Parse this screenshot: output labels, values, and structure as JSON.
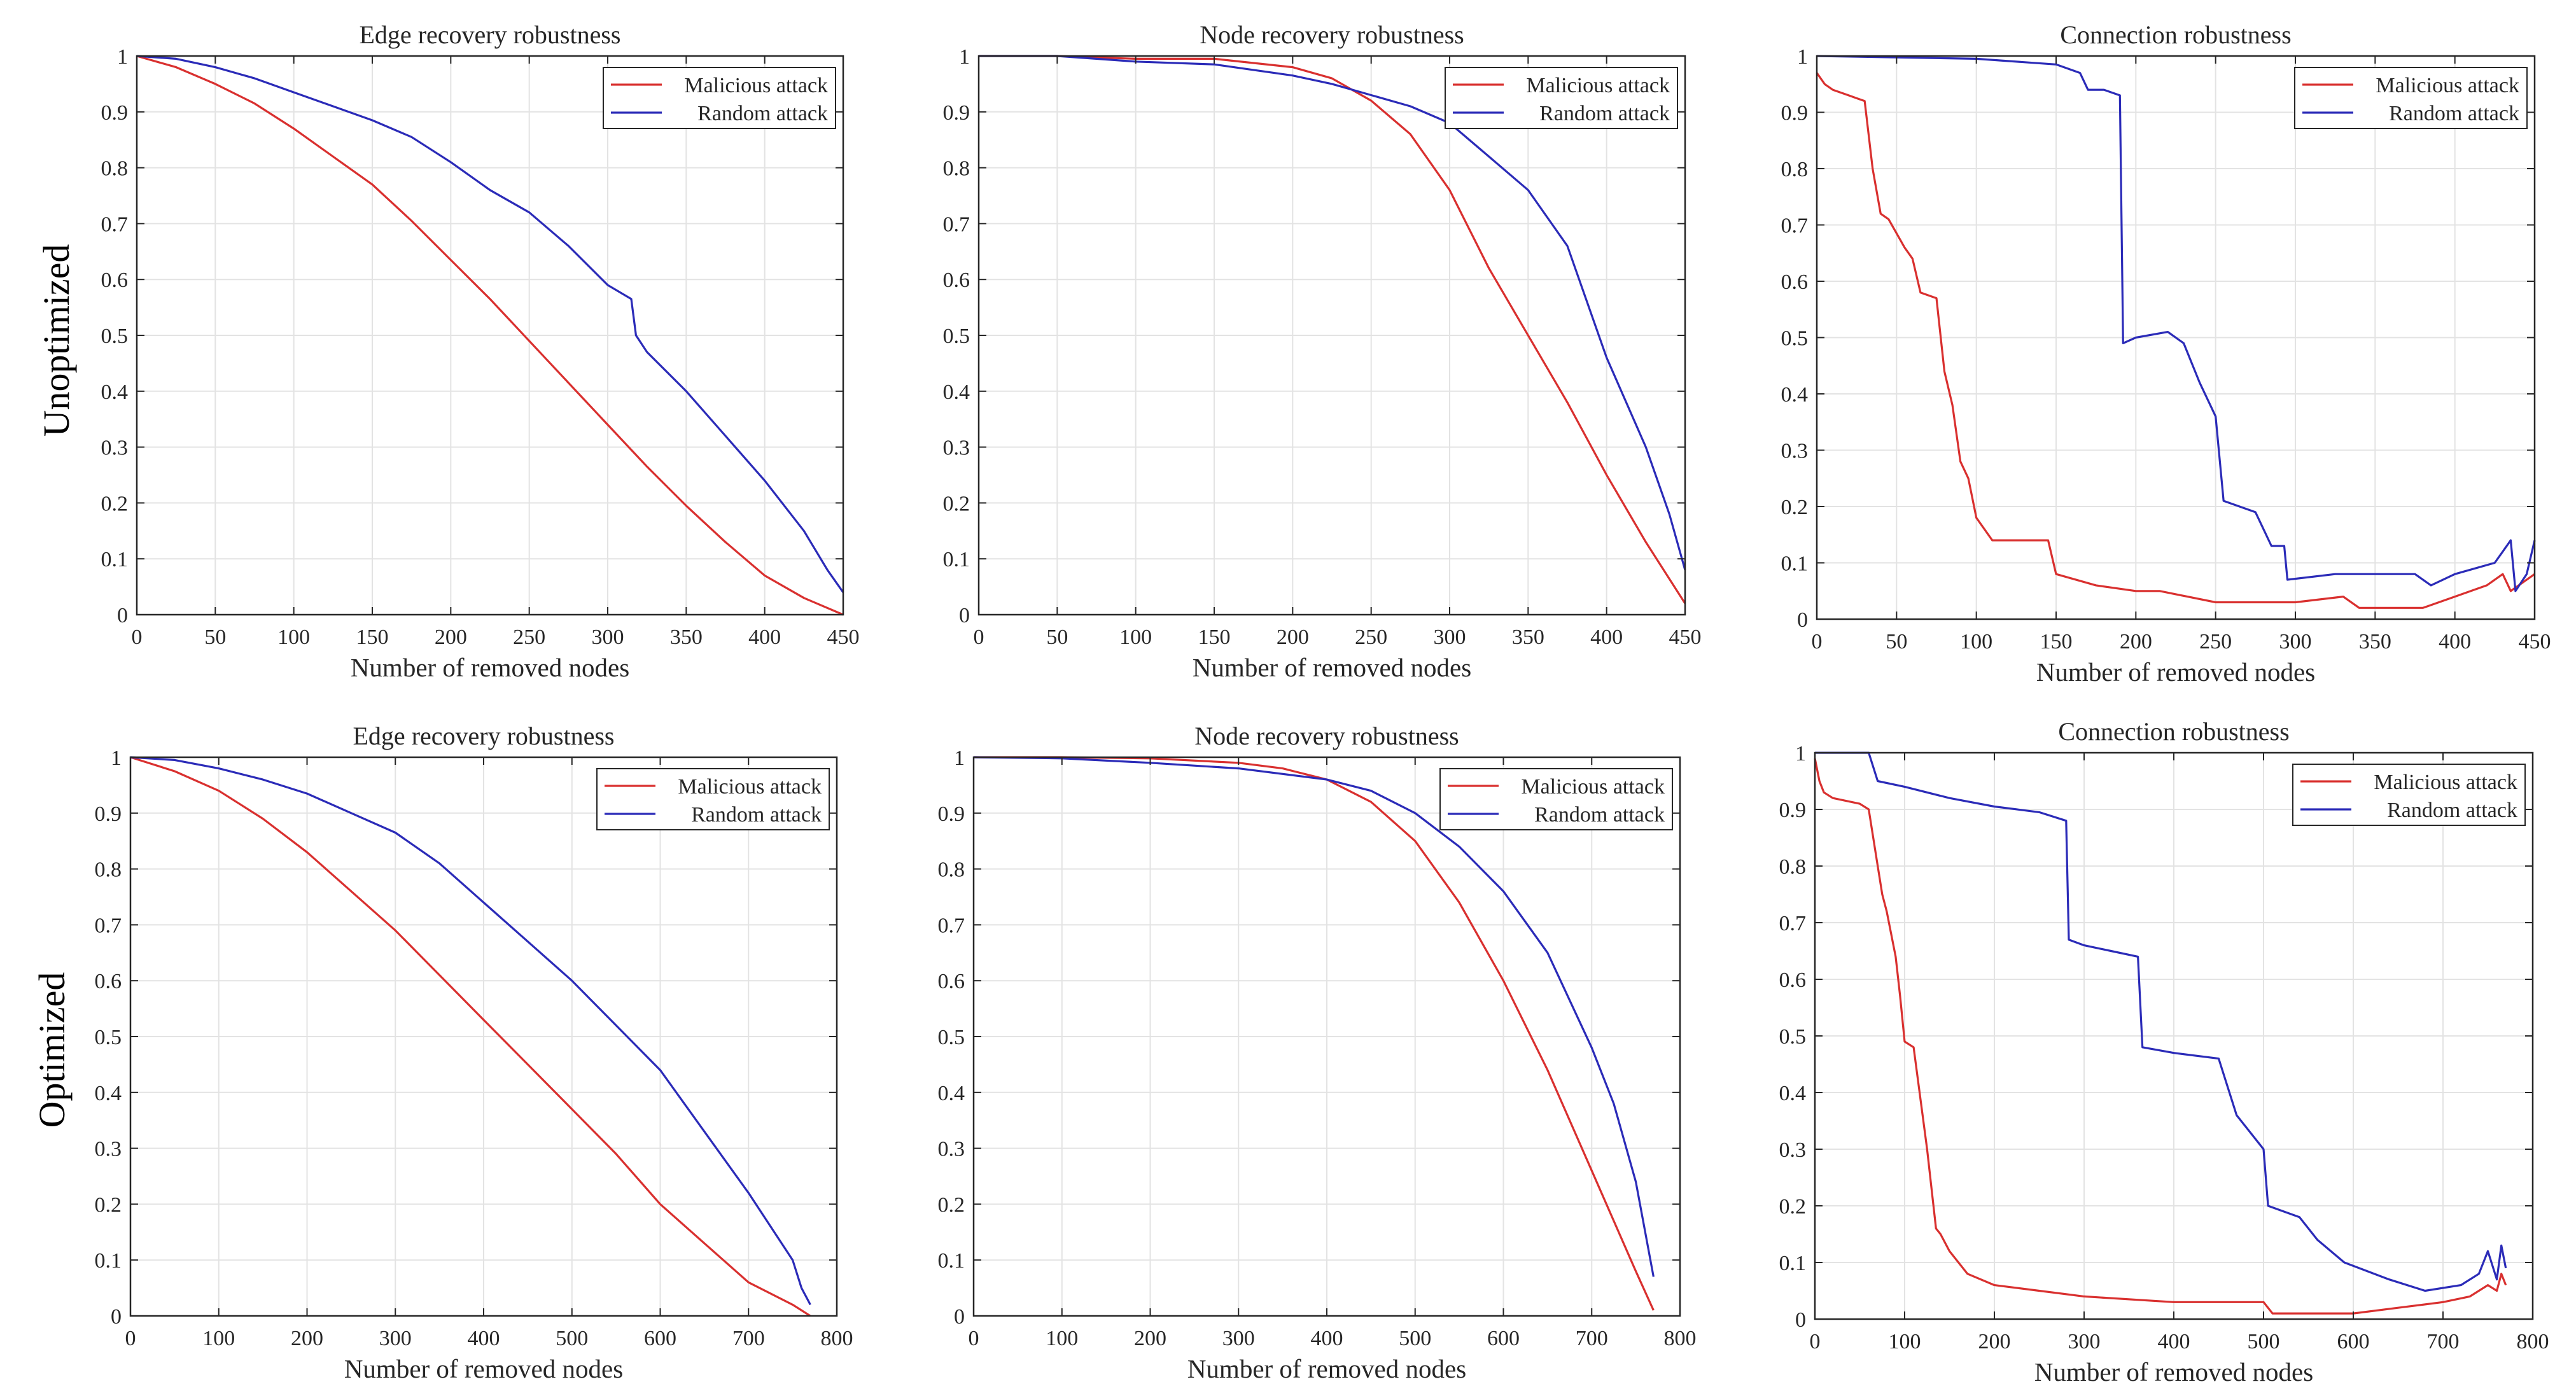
{
  "figure": {
    "row_labels": [
      "Unoptimized",
      "Optimized"
    ],
    "colors": {
      "malicious": "#d9302f",
      "random": "#2b2bb8",
      "grid": "#e3e3e3",
      "axis": "#262626"
    }
  },
  "chart_data": [
    {
      "type": "line",
      "title": "Edge recovery robustness",
      "xlabel": "Number of removed nodes",
      "ylabel": "",
      "xlim": [
        0,
        450
      ],
      "ylim": [
        0,
        1
      ],
      "xticks": [
        0,
        50,
        100,
        150,
        200,
        250,
        300,
        350,
        400,
        450
      ],
      "yticks": [
        0,
        0.1,
        0.2,
        0.3,
        0.4,
        0.5,
        0.6,
        0.7,
        0.8,
        0.9,
        1
      ],
      "legend": "top-right",
      "grid": true,
      "series": [
        {
          "name": "Malicious attack",
          "color": "#d9302f",
          "x": [
            0,
            25,
            50,
            75,
            100,
            125,
            150,
            175,
            200,
            225,
            250,
            275,
            300,
            325,
            350,
            375,
            400,
            425,
            450
          ],
          "y": [
            1.0,
            0.98,
            0.95,
            0.915,
            0.87,
            0.82,
            0.77,
            0.705,
            0.635,
            0.565,
            0.49,
            0.415,
            0.34,
            0.265,
            0.195,
            0.13,
            0.07,
            0.03,
            0.0
          ]
        },
        {
          "name": "Random attack",
          "color": "#2b2bb8",
          "x": [
            0,
            25,
            50,
            75,
            100,
            125,
            150,
            175,
            200,
            225,
            250,
            275,
            300,
            315,
            318,
            325,
            350,
            375,
            400,
            425,
            440,
            450
          ],
          "y": [
            1.0,
            0.995,
            0.98,
            0.96,
            0.935,
            0.91,
            0.885,
            0.855,
            0.81,
            0.76,
            0.72,
            0.66,
            0.59,
            0.565,
            0.5,
            0.47,
            0.4,
            0.32,
            0.24,
            0.15,
            0.08,
            0.04
          ]
        }
      ]
    },
    {
      "type": "line",
      "title": "Node recovery robustness",
      "xlabel": "Number of removed nodes",
      "ylabel": "",
      "xlim": [
        0,
        450
      ],
      "ylim": [
        0,
        1
      ],
      "xticks": [
        0,
        50,
        100,
        150,
        200,
        250,
        300,
        350,
        400,
        450
      ],
      "yticks": [
        0,
        0.1,
        0.2,
        0.3,
        0.4,
        0.5,
        0.6,
        0.7,
        0.8,
        0.9,
        1
      ],
      "legend": "top-right",
      "grid": true,
      "series": [
        {
          "name": "Malicious attack",
          "color": "#d9302f",
          "x": [
            0,
            50,
            100,
            150,
            200,
            225,
            250,
            275,
            300,
            325,
            350,
            375,
            400,
            425,
            450
          ],
          "y": [
            1.0,
            1.0,
            0.995,
            0.995,
            0.98,
            0.96,
            0.92,
            0.86,
            0.76,
            0.62,
            0.5,
            0.38,
            0.25,
            0.13,
            0.02
          ]
        },
        {
          "name": "Random attack",
          "color": "#2b2bb8",
          "x": [
            0,
            50,
            100,
            150,
            200,
            225,
            250,
            275,
            300,
            325,
            350,
            375,
            400,
            425,
            440,
            450
          ],
          "y": [
            1.0,
            1.0,
            0.99,
            0.985,
            0.965,
            0.95,
            0.93,
            0.91,
            0.88,
            0.82,
            0.76,
            0.66,
            0.46,
            0.3,
            0.18,
            0.08
          ]
        }
      ]
    },
    {
      "type": "line",
      "title": "Connection robustness",
      "xlabel": "Number of removed nodes",
      "ylabel": "",
      "xlim": [
        0,
        450
      ],
      "ylim": [
        0,
        1
      ],
      "xticks": [
        0,
        50,
        100,
        150,
        200,
        250,
        300,
        350,
        400,
        450
      ],
      "yticks": [
        0,
        0.1,
        0.2,
        0.3,
        0.4,
        0.5,
        0.6,
        0.7,
        0.8,
        0.9,
        1
      ],
      "legend": "top-right",
      "grid": true,
      "series": [
        {
          "name": "Malicious attack",
          "color": "#d9302f",
          "x": [
            0,
            5,
            10,
            20,
            30,
            35,
            40,
            45,
            55,
            60,
            65,
            75,
            80,
            85,
            90,
            95,
            100,
            110,
            120,
            145,
            150,
            175,
            200,
            215,
            250,
            300,
            330,
            340,
            380,
            400,
            420,
            430,
            435,
            440,
            450
          ],
          "y": [
            0.97,
            0.95,
            0.94,
            0.93,
            0.92,
            0.8,
            0.72,
            0.71,
            0.66,
            0.64,
            0.58,
            0.57,
            0.44,
            0.38,
            0.28,
            0.25,
            0.18,
            0.14,
            0.14,
            0.14,
            0.08,
            0.06,
            0.05,
            0.05,
            0.03,
            0.03,
            0.04,
            0.02,
            0.02,
            0.04,
            0.06,
            0.08,
            0.05,
            0.06,
            0.08
          ]
        },
        {
          "name": "Random attack",
          "color": "#2b2bb8",
          "x": [
            0,
            100,
            150,
            165,
            170,
            180,
            190,
            192,
            200,
            220,
            230,
            240,
            250,
            255,
            275,
            285,
            293,
            295,
            325,
            375,
            385,
            400,
            425,
            430,
            435,
            438,
            445,
            450
          ],
          "y": [
            1.0,
            0.995,
            0.985,
            0.97,
            0.94,
            0.94,
            0.93,
            0.49,
            0.5,
            0.51,
            0.49,
            0.42,
            0.36,
            0.21,
            0.19,
            0.13,
            0.13,
            0.07,
            0.08,
            0.08,
            0.06,
            0.08,
            0.1,
            0.12,
            0.14,
            0.05,
            0.08,
            0.14
          ]
        }
      ]
    },
    {
      "type": "line",
      "title": "Edge recovery robustness",
      "xlabel": "Number of removed nodes",
      "ylabel": "",
      "xlim": [
        0,
        800
      ],
      "ylim": [
        0,
        1
      ],
      "xticks": [
        0,
        100,
        200,
        300,
        400,
        500,
        600,
        700,
        800
      ],
      "yticks": [
        0,
        0.1,
        0.2,
        0.3,
        0.4,
        0.5,
        0.6,
        0.7,
        0.8,
        0.9,
        1
      ],
      "legend": "top-right",
      "grid": true,
      "series": [
        {
          "name": "Malicious attack",
          "color": "#d9302f",
          "x": [
            0,
            50,
            100,
            150,
            200,
            250,
            300,
            350,
            400,
            450,
            500,
            550,
            600,
            650,
            700,
            750,
            770
          ],
          "y": [
            1.0,
            0.975,
            0.94,
            0.89,
            0.83,
            0.76,
            0.69,
            0.61,
            0.53,
            0.45,
            0.37,
            0.29,
            0.2,
            0.13,
            0.06,
            0.02,
            0.0
          ]
        },
        {
          "name": "Random attack",
          "color": "#2b2bb8",
          "x": [
            0,
            50,
            100,
            150,
            200,
            250,
            300,
            350,
            400,
            450,
            500,
            550,
            600,
            650,
            700,
            750,
            760,
            770
          ],
          "y": [
            1.0,
            0.995,
            0.98,
            0.96,
            0.935,
            0.9,
            0.865,
            0.81,
            0.74,
            0.67,
            0.6,
            0.52,
            0.44,
            0.33,
            0.22,
            0.1,
            0.05,
            0.02
          ]
        }
      ]
    },
    {
      "type": "line",
      "title": "Node recovery robustness",
      "xlabel": "Number of removed nodes",
      "ylabel": "",
      "xlim": [
        0,
        800
      ],
      "ylim": [
        0,
        1
      ],
      "xticks": [
        0,
        100,
        200,
        300,
        400,
        500,
        600,
        700,
        800
      ],
      "yticks": [
        0,
        0.1,
        0.2,
        0.3,
        0.4,
        0.5,
        0.6,
        0.7,
        0.8,
        0.9,
        1
      ],
      "legend": "top-right",
      "grid": true,
      "series": [
        {
          "name": "Malicious attack",
          "color": "#d9302f",
          "x": [
            0,
            100,
            200,
            300,
            350,
            400,
            450,
            500,
            550,
            600,
            650,
            700,
            750,
            770
          ],
          "y": [
            1.0,
            1.0,
            0.998,
            0.99,
            0.98,
            0.96,
            0.92,
            0.85,
            0.74,
            0.6,
            0.44,
            0.26,
            0.08,
            0.01
          ]
        },
        {
          "name": "Random attack",
          "color": "#2b2bb8",
          "x": [
            0,
            100,
            200,
            300,
            400,
            450,
            500,
            550,
            600,
            650,
            700,
            725,
            750,
            770
          ],
          "y": [
            1.0,
            0.998,
            0.99,
            0.98,
            0.96,
            0.94,
            0.9,
            0.84,
            0.76,
            0.65,
            0.48,
            0.38,
            0.24,
            0.07
          ]
        }
      ]
    },
    {
      "type": "line",
      "title": "Connection robustness",
      "xlabel": "Number of removed nodes",
      "ylabel": "",
      "xlim": [
        0,
        800
      ],
      "ylim": [
        0,
        1
      ],
      "xticks": [
        0,
        100,
        200,
        300,
        400,
        500,
        600,
        700,
        800
      ],
      "yticks": [
        0,
        0.1,
        0.2,
        0.3,
        0.4,
        0.5,
        0.6,
        0.7,
        0.8,
        0.9,
        1
      ],
      "legend": "top-right",
      "grid": true,
      "series": [
        {
          "name": "Malicious attack",
          "color": "#d9302f",
          "x": [
            0,
            5,
            10,
            20,
            50,
            60,
            70,
            75,
            80,
            90,
            95,
            100,
            110,
            125,
            135,
            140,
            150,
            170,
            200,
            250,
            300,
            400,
            500,
            510,
            600,
            650,
            700,
            730,
            750,
            760,
            765,
            770
          ],
          "y": [
            0.99,
            0.95,
            0.93,
            0.92,
            0.91,
            0.9,
            0.8,
            0.75,
            0.72,
            0.64,
            0.57,
            0.49,
            0.48,
            0.3,
            0.16,
            0.15,
            0.12,
            0.08,
            0.06,
            0.05,
            0.04,
            0.03,
            0.03,
            0.01,
            0.01,
            0.02,
            0.03,
            0.04,
            0.06,
            0.05,
            0.08,
            0.06
          ]
        },
        {
          "name": "Random attack",
          "color": "#2b2bb8",
          "x": [
            0,
            60,
            70,
            100,
            150,
            200,
            250,
            280,
            283,
            300,
            330,
            360,
            365,
            400,
            450,
            470,
            500,
            505,
            540,
            560,
            590,
            640,
            680,
            720,
            740,
            750,
            760,
            765,
            770
          ],
          "y": [
            1.0,
            1.0,
            0.95,
            0.94,
            0.92,
            0.905,
            0.895,
            0.88,
            0.67,
            0.66,
            0.65,
            0.64,
            0.48,
            0.47,
            0.46,
            0.36,
            0.3,
            0.2,
            0.18,
            0.14,
            0.1,
            0.07,
            0.05,
            0.06,
            0.08,
            0.12,
            0.07,
            0.13,
            0.09
          ]
        }
      ]
    }
  ]
}
